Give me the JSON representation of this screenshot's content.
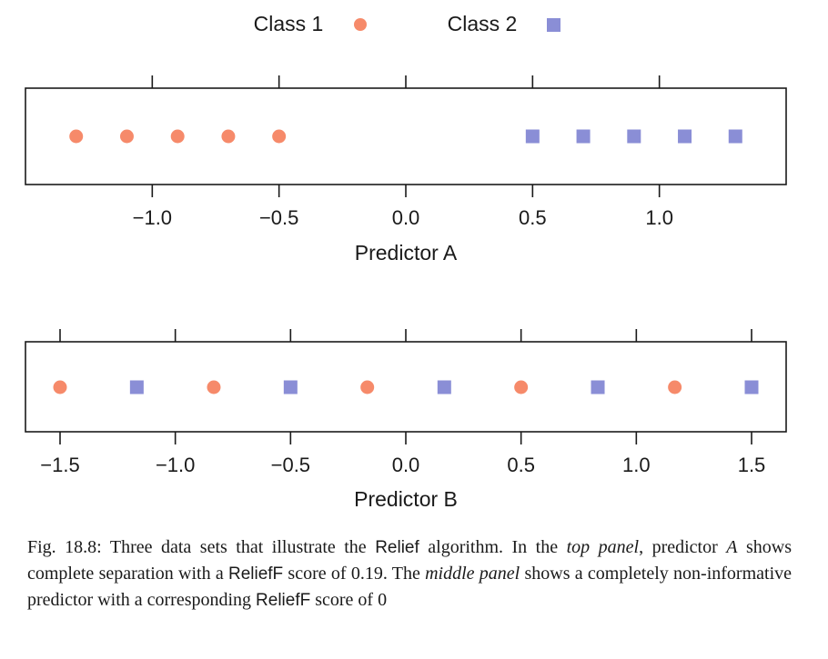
{
  "legend": {
    "class1_label": "Class 1",
    "class2_label": "Class 2"
  },
  "colors": {
    "class1": "#f68a6a",
    "class2": "#8a8ed6",
    "axis": "#1a1a1a"
  },
  "chart_data": [
    {
      "type": "scatter",
      "xlabel": "Predictor A",
      "xlim": [
        -1.5,
        1.5
      ],
      "xticks": [
        -1.0,
        -0.5,
        0.0,
        0.5,
        1.0
      ],
      "xtick_labels": [
        "−1.0",
        "−0.5",
        "0.0",
        "0.5",
        "1.0"
      ],
      "series": [
        {
          "name": "Class 1",
          "marker": "circle",
          "x": [
            -1.3,
            -1.1,
            -0.9,
            -0.7,
            -0.5
          ]
        },
        {
          "name": "Class 2",
          "marker": "square",
          "x": [
            0.5,
            0.7,
            0.9,
            1.1,
            1.3
          ]
        }
      ]
    },
    {
      "type": "scatter",
      "xlabel": "Predictor B",
      "xlim": [
        -1.65,
        1.65
      ],
      "xticks": [
        -1.5,
        -1.0,
        -0.5,
        0.0,
        0.5,
        1.0,
        1.5
      ],
      "xtick_labels": [
        "−1.5",
        "−1.0",
        "−0.5",
        "0.0",
        "0.5",
        "1.0",
        "1.5"
      ],
      "series": [
        {
          "name": "Class 1",
          "marker": "circle",
          "x": [
            -1.5,
            -0.833,
            -0.167,
            0.5,
            1.167
          ]
        },
        {
          "name": "Class 2",
          "marker": "square",
          "x": [
            -1.167,
            -0.5,
            0.167,
            0.833,
            1.5
          ]
        }
      ]
    }
  ],
  "caption": {
    "part1": "Fig. 18.8: Three data sets that illustrate the ",
    "part2": "Relief",
    "part3": " algorithm. In the ",
    "part4": "top panel",
    "part5": ", predictor ",
    "part6": "A",
    "part7": " shows complete separation with a ",
    "part8": "ReliefF",
    "part9": " score of 0.19. The ",
    "part10": "middle panel",
    "part11": " shows a completely non-informative predictor with a corresponding ",
    "part12": "ReliefF",
    "part13": " score of 0"
  }
}
